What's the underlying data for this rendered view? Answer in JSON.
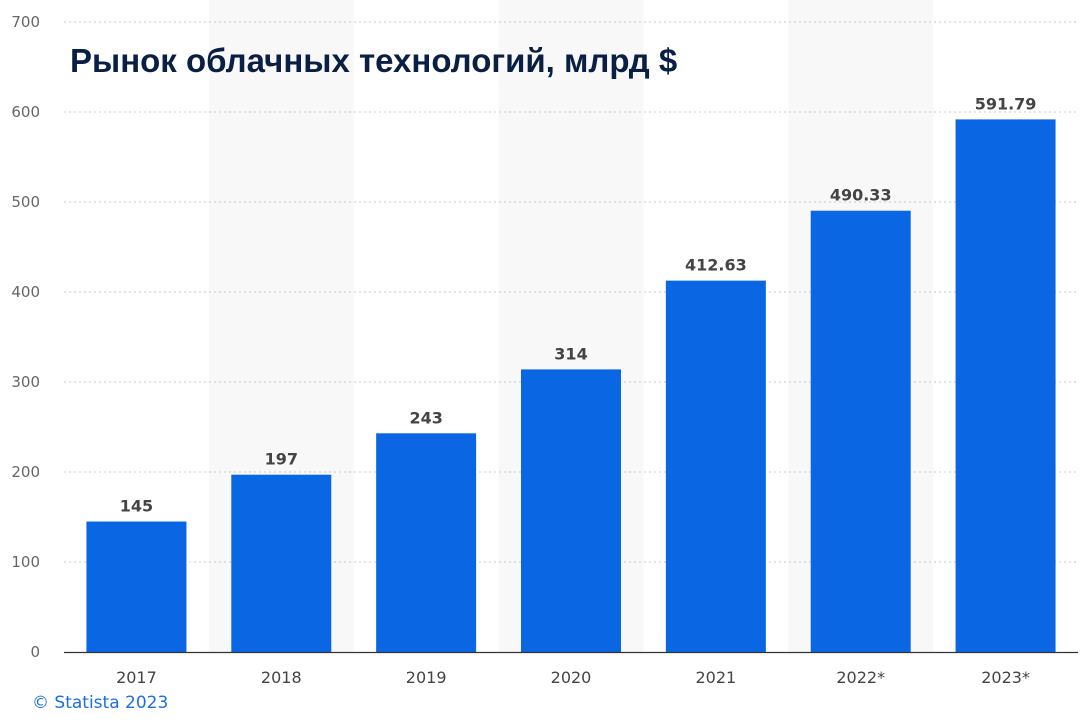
{
  "chart_data": {
    "type": "bar",
    "title": "Рынок облачных технологий, млрд $",
    "categories": [
      "2017",
      "2018",
      "2019",
      "2020",
      "2021",
      "2022*",
      "2023*"
    ],
    "values": [
      145,
      197,
      243,
      314,
      412.63,
      490.33,
      591.79
    ],
    "value_labels": [
      "145",
      "197",
      "243",
      "314",
      "412.63",
      "490.33",
      "591.79"
    ],
    "xlabel": "",
    "ylabel": "",
    "ylim": [
      0,
      700
    ],
    "yticks": [
      0,
      100,
      200,
      300,
      400,
      500,
      600,
      700
    ],
    "grid": true,
    "bar_color": "#0b66e4"
  },
  "credit": "© Statista 2023"
}
